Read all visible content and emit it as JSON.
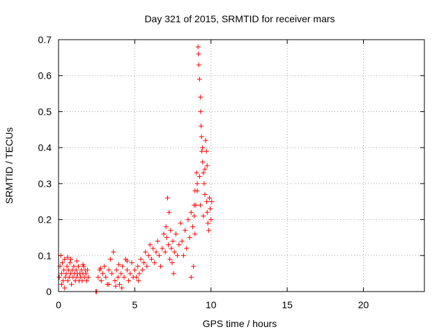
{
  "chart_data": {
    "type": "scatter",
    "title": "Day 321 of 2015, SRMTID for receiver mars",
    "xlabel": "GPS time / hours",
    "ylabel": "SRMTID / TECUs",
    "xlim": [
      0,
      24
    ],
    "ylim": [
      0,
      0.7
    ],
    "xticks": [
      0,
      5,
      10,
      15,
      20
    ],
    "xtick_labels": [
      "0",
      "5",
      "10",
      "15",
      "20"
    ],
    "yticks": [
      0,
      0.1,
      0.2,
      0.3,
      0.4,
      0.5,
      0.6,
      0.7
    ],
    "ytick_labels": [
      "0",
      "0.1",
      "0.2",
      "0.3",
      "0.4",
      "0.5",
      "0.6",
      "0.7"
    ],
    "grid": true,
    "marker": "plus",
    "color": "#ff0000",
    "series": [
      {
        "name": "SRMTID",
        "points": [
          [
            0.05,
            0.04
          ],
          [
            0.1,
            0.07
          ],
          [
            0.15,
            0.1
          ],
          [
            0.2,
            0.05
          ],
          [
            0.25,
            0.08
          ],
          [
            0.3,
            0.03
          ],
          [
            0.35,
            0.06
          ],
          [
            0.4,
            0.09
          ],
          [
            0.45,
            0.04
          ],
          [
            0.5,
            0.05
          ],
          [
            0.55,
            0.07
          ],
          [
            0.6,
            0.03
          ],
          [
            0.65,
            0.06
          ],
          [
            0.7,
            0.04
          ],
          [
            0.75,
            0.08
          ],
          [
            0.8,
            0.05
          ],
          [
            0.85,
            0.02
          ],
          [
            0.9,
            0.06
          ],
          [
            0.95,
            0.04
          ],
          [
            1.0,
            0.07
          ],
          [
            1.05,
            0.05
          ],
          [
            1.1,
            0.03
          ],
          [
            1.15,
            0.06
          ],
          [
            1.2,
            0.04
          ],
          [
            1.25,
            0.05
          ],
          [
            1.3,
            0.07
          ],
          [
            1.35,
            0.03
          ],
          [
            1.4,
            0.05
          ],
          [
            1.45,
            0.04
          ],
          [
            1.5,
            0.06
          ],
          [
            1.55,
            0.03
          ],
          [
            1.6,
            0.05
          ],
          [
            1.65,
            0.07
          ],
          [
            1.7,
            0.04
          ],
          [
            1.75,
            0.06
          ],
          [
            1.8,
            0.05
          ],
          [
            1.85,
            0.03
          ],
          [
            1.9,
            0.06
          ],
          [
            1.95,
            0.04
          ],
          [
            0.2,
            0.02
          ],
          [
            0.6,
            0.095
          ],
          [
            0.8,
            0.09
          ],
          [
            1.2,
            0.085
          ],
          [
            1.6,
            0.075
          ],
          [
            0.4,
            0.01
          ],
          [
            2.45,
            0.0
          ],
          [
            2.5,
            0.0
          ],
          [
            2.6,
            0.04
          ],
          [
            2.7,
            0.06
          ],
          [
            2.8,
            0.03
          ],
          [
            2.9,
            0.05
          ],
          [
            3.0,
            0.07
          ],
          [
            3.1,
            0.04
          ],
          [
            3.2,
            0.02
          ],
          [
            3.3,
            0.06
          ],
          [
            3.4,
            0.09
          ],
          [
            3.5,
            0.05
          ],
          [
            3.6,
            0.11
          ],
          [
            3.7,
            0.03
          ],
          [
            3.8,
            0.06
          ],
          [
            3.9,
            0.04
          ],
          [
            4.0,
            0.02
          ],
          [
            4.1,
            0.05
          ],
          [
            4.2,
            0.07
          ],
          [
            4.3,
            0.04
          ],
          [
            4.4,
            0.09
          ],
          [
            4.5,
            0.06
          ],
          [
            4.6,
            0.03
          ],
          [
            4.7,
            0.05
          ],
          [
            4.8,
            0.08
          ],
          [
            4.9,
            0.04
          ],
          [
            5.0,
            0.06
          ],
          [
            5.1,
            0.04
          ],
          [
            5.2,
            0.07
          ],
          [
            5.3,
            0.05
          ],
          [
            5.4,
            0.09
          ],
          [
            5.5,
            0.06
          ],
          [
            3.3,
            0.02
          ],
          [
            3.75,
            0.015
          ],
          [
            4.15,
            0.01
          ],
          [
            4.5,
            0.085
          ],
          [
            5.25,
            0.03
          ],
          [
            2.75,
            0.065
          ],
          [
            3.95,
            0.075
          ],
          [
            5.6,
            0.08
          ],
          [
            5.7,
            0.11
          ],
          [
            5.8,
            0.07
          ],
          [
            5.9,
            0.1
          ],
          [
            6.0,
            0.13
          ],
          [
            6.1,
            0.09
          ],
          [
            6.2,
            0.12
          ],
          [
            6.3,
            0.08
          ],
          [
            6.4,
            0.11
          ],
          [
            6.5,
            0.14
          ],
          [
            6.6,
            0.1
          ],
          [
            6.7,
            0.07
          ],
          [
            6.8,
            0.12
          ],
          [
            6.9,
            0.16
          ],
          [
            7.0,
            0.11
          ],
          [
            7.05,
            0.18
          ],
          [
            7.1,
            0.15
          ],
          [
            7.15,
            0.26
          ],
          [
            7.2,
            0.13
          ],
          [
            7.25,
            0.22
          ],
          [
            7.3,
            0.09
          ],
          [
            7.35,
            0.17
          ],
          [
            7.4,
            0.12
          ],
          [
            7.45,
            0.08
          ],
          [
            7.5,
            0.14
          ],
          [
            7.55,
            0.05
          ],
          [
            7.6,
            0.11
          ],
          [
            7.7,
            0.16
          ],
          [
            7.8,
            0.1
          ],
          [
            7.9,
            0.13
          ],
          [
            8.0,
            0.19
          ],
          [
            8.1,
            0.14
          ],
          [
            8.2,
            0.1
          ],
          [
            8.3,
            0.17
          ],
          [
            8.4,
            0.12
          ],
          [
            8.5,
            0.2
          ],
          [
            8.6,
            0.15
          ],
          [
            8.7,
            0.22
          ],
          [
            8.8,
            0.18
          ],
          [
            8.85,
            0.07
          ],
          [
            8.9,
            0.21
          ],
          [
            8.95,
            0.28
          ],
          [
            9.0,
            0.24
          ],
          [
            9.05,
            0.33
          ],
          [
            9.1,
            0.3
          ],
          [
            9.15,
            0.68
          ],
          [
            9.18,
            0.66
          ],
          [
            9.2,
            0.63
          ],
          [
            9.25,
            0.59
          ],
          [
            9.3,
            0.54
          ],
          [
            9.32,
            0.5
          ],
          [
            9.35,
            0.46
          ],
          [
            9.38,
            0.43
          ],
          [
            9.4,
            0.39
          ],
          [
            9.45,
            0.36
          ],
          [
            9.5,
            0.33
          ],
          [
            9.55,
            0.3
          ],
          [
            9.6,
            0.27
          ],
          [
            9.65,
            0.42
          ],
          [
            9.7,
            0.39
          ],
          [
            9.72,
            0.25
          ],
          [
            9.75,
            0.22
          ],
          [
            9.8,
            0.19
          ],
          [
            9.85,
            0.17
          ],
          [
            9.9,
            0.26
          ],
          [
            9.95,
            0.23
          ],
          [
            10.0,
            0.2
          ],
          [
            10.05,
            0.25
          ],
          [
            9.5,
            0.21
          ],
          [
            9.3,
            0.24
          ],
          [
            9.1,
            0.28
          ],
          [
            8.95,
            0.16
          ],
          [
            9.6,
            0.34
          ],
          [
            9.75,
            0.35
          ],
          [
            9.45,
            0.4
          ],
          [
            9.25,
            0.32
          ],
          [
            8.7,
            0.04
          ],
          [
            8.9,
            0.24
          ]
        ]
      }
    ]
  }
}
